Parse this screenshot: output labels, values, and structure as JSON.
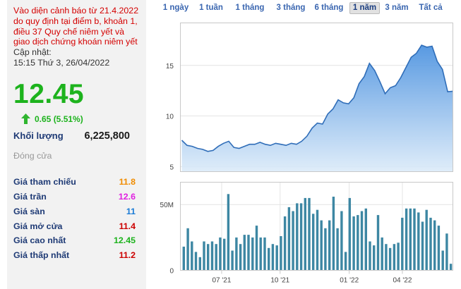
{
  "warning": "Vào diện cảnh báo từ 21.4.2022 do quy định tại điểm b, khoản 1, điều 37 Quy chế niêm yết và giao dịch chứng khoán niêm yết",
  "updated_label": "Cập nhật:",
  "updated_value": "15:15 Thứ 3, 26/04/2022",
  "price": "12.45",
  "change": "0.65 (5.51%)",
  "volume": {
    "label": "Khối lượng",
    "value": "6,225,800"
  },
  "status": "Đóng cửa",
  "colors": {
    "up": "#1db31d",
    "ref": "#f08c00",
    "ceiling": "#e020e0",
    "floor": "#1a7bd6",
    "down": "#cc0000",
    "accent": "#4f86c6"
  },
  "stats": [
    {
      "label": "Giá tham chiếu",
      "value": "11.8",
      "color": "#f08c00"
    },
    {
      "label": "Giá trần",
      "value": "12.6",
      "color": "#e020e0"
    },
    {
      "label": "Giá sàn",
      "value": "11",
      "color": "#1a7bd6"
    },
    {
      "label": "Giá mở cửa",
      "value": "11.4",
      "color": "#cc0000"
    },
    {
      "label": "Giá cao nhất",
      "value": "12.45",
      "color": "#1db31d"
    },
    {
      "label": "Giá thấp nhất",
      "value": "11.2",
      "color": "#cc0000"
    }
  ],
  "tabs": [
    {
      "label": "1 ngày",
      "active": false
    },
    {
      "label": "1 tuần",
      "active": false
    },
    {
      "label": "1 tháng",
      "active": false
    },
    {
      "label": "3 tháng",
      "active": false
    },
    {
      "label": "6 tháng",
      "active": false
    },
    {
      "label": "1 năm",
      "active": true
    },
    {
      "label": "3 năm",
      "active": false
    },
    {
      "label": "Tất cả",
      "active": false
    }
  ],
  "chart_data": [
    {
      "type": "area",
      "ylim": [
        4.5,
        19.2
      ],
      "y_ticks": [
        5,
        10,
        15
      ],
      "values": [
        7.6,
        7.1,
        7.0,
        6.8,
        6.7,
        6.5,
        6.6,
        7.0,
        7.3,
        7.5,
        6.9,
        6.8,
        7.0,
        7.2,
        7.2,
        7.4,
        7.2,
        7.1,
        7.3,
        7.2,
        7.1,
        7.3,
        7.2,
        7.5,
        8.0,
        8.8,
        9.3,
        9.2,
        10.2,
        10.7,
        11.6,
        11.3,
        11.2,
        11.8,
        13.2,
        13.9,
        15.2,
        14.5,
        13.4,
        12.2,
        12.8,
        13.0,
        13.8,
        14.8,
        15.8,
        16.2,
        17.0,
        16.8,
        16.9,
        15.4,
        14.6,
        12.4,
        12.45
      ]
    },
    {
      "type": "bar",
      "ylim": [
        0,
        67
      ],
      "y_ticks": [
        {
          "value": 0,
          "label": "0"
        },
        {
          "value": 50,
          "label": "50M"
        }
      ],
      "x_ticks": [
        {
          "index": 7.5,
          "label": "07 '21"
        },
        {
          "index": 18.5,
          "label": "10 '21"
        },
        {
          "index": 31.5,
          "label": "01 '22"
        },
        {
          "index": 41.5,
          "label": "04 '22"
        }
      ],
      "values": [
        18,
        32,
        22,
        14,
        10,
        22,
        20,
        22,
        20,
        25,
        24,
        58,
        15,
        25,
        20,
        27,
        27,
        25,
        34,
        25,
        25,
        17,
        20,
        19,
        26,
        41,
        48,
        45,
        51,
        51,
        55,
        55,
        43,
        46,
        38,
        32,
        38,
        56,
        32,
        45,
        14,
        55,
        41,
        42,
        45,
        47,
        22,
        19,
        42,
        25,
        20,
        17,
        20,
        21,
        40,
        47,
        47,
        47,
        44,
        37,
        46,
        40,
        38,
        34,
        15,
        28,
        5
      ]
    }
  ]
}
